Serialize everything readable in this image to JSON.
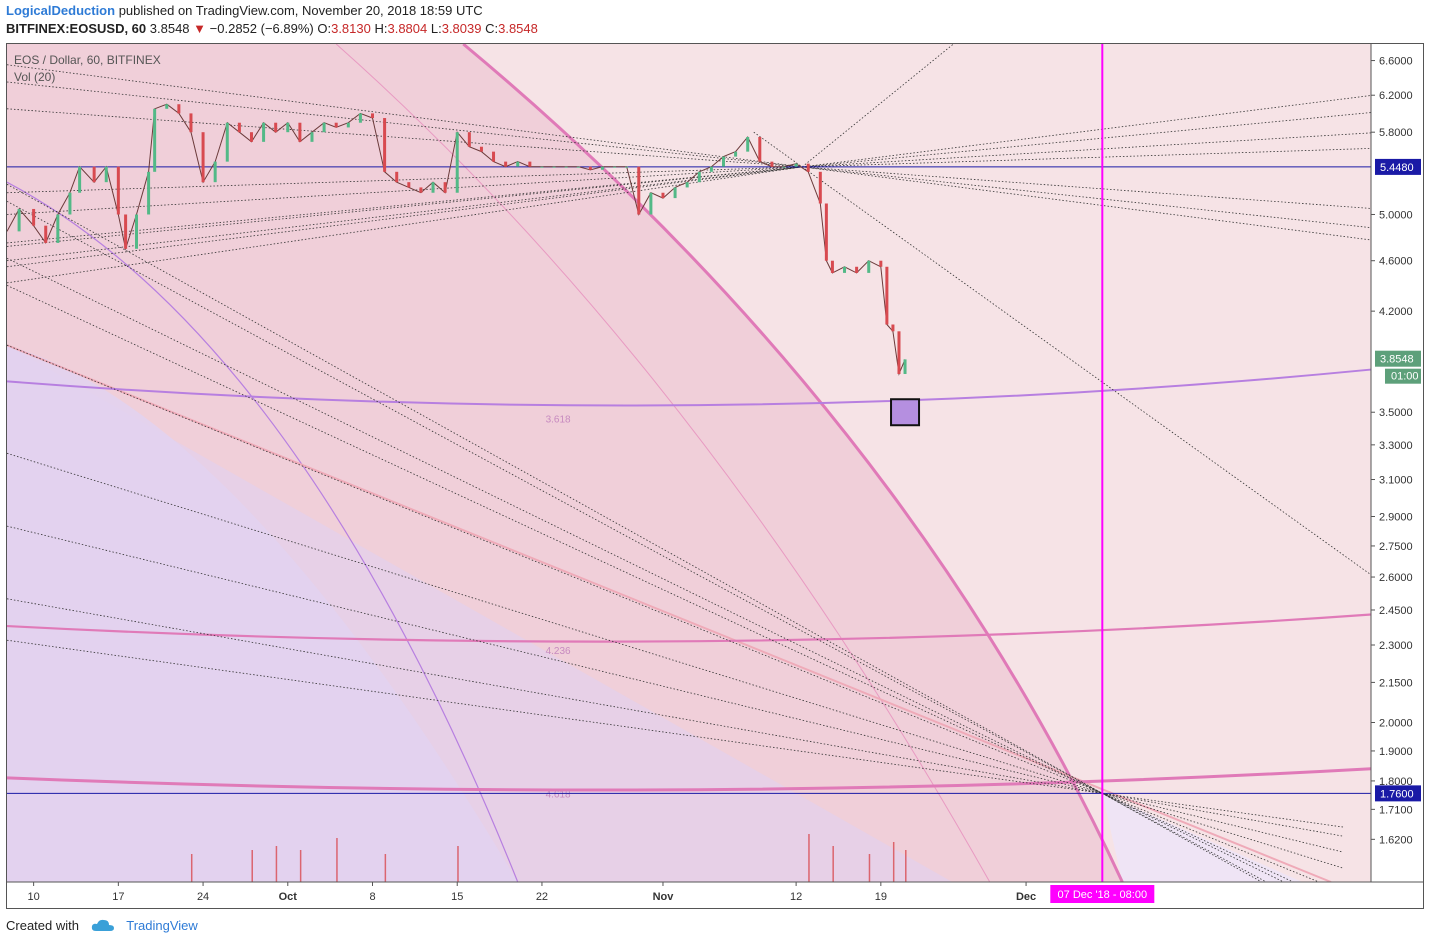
{
  "header": {
    "author": "LogicalDeduction",
    "published_text": "published on TradingView.com, November 20, 2018 18:59 UTC",
    "symbol": "BITFINEX:EOSUSD, 60",
    "last": "3.8548",
    "change": "−0.2852 (−6.89%)",
    "o_label": "O:",
    "o_value": "3.8130",
    "h_label": "H:",
    "h_value": "3.8804",
    "l_label": "L:",
    "l_value": "3.8039",
    "c_label": "C:",
    "c_value": "3.8548"
  },
  "legend": {
    "series": "EOS / Dollar, 60, BITFINEX",
    "volume": "Vol (20)"
  },
  "footer": {
    "created_with": "Created with",
    "brand": "TradingView"
  },
  "colors": {
    "candle_up": "#53b987",
    "candle_down": "#d84a50",
    "fib_pink": "#e07ab8",
    "fib_purple": "#b77fe0",
    "blue_line": "#1a1aa6",
    "magenta_line": "#ff00ff",
    "price_tag_green": "#5da07a"
  },
  "chart_data": {
    "type": "candlestick",
    "symbol": "EOSUSD",
    "exchange": "BITFINEX",
    "interval": "60",
    "y_scale": "log",
    "ylim": [
      1.5,
      6.8
    ],
    "y_ticks": [
      6.6,
      6.2,
      5.8,
      5.0,
      4.6,
      4.2,
      3.5,
      3.3,
      3.1,
      2.9,
      2.75,
      2.6,
      2.45,
      2.3,
      2.15,
      2.0,
      1.9,
      1.8,
      1.71,
      1.62
    ],
    "y_tick_labels": [
      "6.6000",
      "6.2000",
      "5.8000",
      "5.0000",
      "4.6000",
      "4.2000",
      "3.5000",
      "3.3000",
      "3.1000",
      "2.9000",
      "2.7500",
      "2.6000",
      "2.4500",
      "2.3000",
      "2.1500",
      "2.0000",
      "1.9000",
      "1.8000",
      "1.7100",
      "1.6200"
    ],
    "x_ticks": [
      "10",
      "17",
      "24",
      "Oct",
      "8",
      "15",
      "22",
      "Nov",
      "12",
      "19",
      "Dec"
    ],
    "x_tick_days": [
      0,
      7,
      14,
      21,
      28,
      35,
      42,
      52,
      63,
      70,
      82
    ],
    "x_origin": "2018-09-10",
    "x_range_days": [
      -2.2,
      110.5
    ],
    "price_series": [
      [
        -2.2,
        4.85
      ],
      [
        -1.2,
        5.05
      ],
      [
        0,
        4.9
      ],
      [
        1,
        4.75
      ],
      [
        2,
        5.0
      ],
      [
        3,
        5.2
      ],
      [
        3.8,
        5.45
      ],
      [
        5,
        5.3
      ],
      [
        6,
        5.45
      ],
      [
        7,
        5.0
      ],
      [
        7.6,
        4.7
      ],
      [
        8.5,
        5.0
      ],
      [
        9.5,
        5.4
      ],
      [
        10,
        6.05
      ],
      [
        11,
        6.1
      ],
      [
        12,
        6.0
      ],
      [
        13,
        5.8
      ],
      [
        14,
        5.3
      ],
      [
        15,
        5.5
      ],
      [
        16,
        5.9
      ],
      [
        17,
        5.8
      ],
      [
        18,
        5.7
      ],
      [
        19,
        5.9
      ],
      [
        20,
        5.8
      ],
      [
        21,
        5.9
      ],
      [
        22,
        5.7
      ],
      [
        23,
        5.8
      ],
      [
        24,
        5.9
      ],
      [
        25,
        5.85
      ],
      [
        26,
        5.9
      ],
      [
        27,
        6.0
      ],
      [
        28,
        5.95
      ],
      [
        29,
        5.4
      ],
      [
        30,
        5.3
      ],
      [
        31,
        5.25
      ],
      [
        32,
        5.2
      ],
      [
        33,
        5.3
      ],
      [
        34,
        5.2
      ],
      [
        35,
        5.8
      ],
      [
        36,
        5.65
      ],
      [
        37,
        5.6
      ],
      [
        38,
        5.5
      ],
      [
        39,
        5.45
      ],
      [
        40,
        5.5
      ],
      [
        41,
        5.45
      ],
      [
        42,
        5.45
      ],
      [
        43,
        5.45
      ],
      [
        44,
        5.45
      ],
      [
        45,
        5.45
      ],
      [
        46,
        5.42
      ],
      [
        47,
        5.45
      ],
      [
        48,
        5.45
      ],
      [
        49,
        5.45
      ],
      [
        50,
        5.0
      ],
      [
        51,
        5.2
      ],
      [
        52,
        5.15
      ],
      [
        53,
        5.25
      ],
      [
        54,
        5.3
      ],
      [
        55,
        5.4
      ],
      [
        56,
        5.45
      ],
      [
        57,
        5.55
      ],
      [
        58,
        5.6
      ],
      [
        59,
        5.75
      ],
      [
        60,
        5.5
      ],
      [
        61,
        5.45
      ],
      [
        62,
        5.45
      ],
      [
        63,
        5.48
      ],
      [
        64,
        5.4
      ],
      [
        65,
        5.1
      ],
      [
        65.5,
        4.6
      ],
      [
        66,
        4.5
      ],
      [
        67,
        4.55
      ],
      [
        68,
        4.5
      ],
      [
        69,
        4.6
      ],
      [
        70,
        4.55
      ],
      [
        70.5,
        4.1
      ],
      [
        71,
        4.05
      ],
      [
        71.5,
        3.75
      ],
      [
        72,
        3.85
      ]
    ],
    "current_price": 3.8548,
    "price_tags": [
      {
        "value": 5.448,
        "label": "5.4480"
      },
      {
        "value": 3.8548,
        "label": "3.8548"
      },
      {
        "value": 1.76,
        "label": "1.7600"
      }
    ],
    "countdown": "01:00",
    "horizontal_lines": [
      5.448,
      1.76
    ],
    "vertical_line": {
      "day": 88.3,
      "label": "07 Dec '18 - 08:00"
    },
    "fib_levels": [
      {
        "label": "3.618",
        "value": 3.46
      },
      {
        "label": "4.236",
        "value": 2.28
      },
      {
        "label": "4.618",
        "value": 1.76
      }
    ],
    "target_box": {
      "day": 72,
      "value": 3.5
    },
    "volume": [
      [
        13,
        0.35
      ],
      [
        18,
        0.4
      ],
      [
        20,
        0.45
      ],
      [
        22,
        0.4
      ],
      [
        25,
        0.55
      ],
      [
        29,
        0.35
      ],
      [
        35,
        0.45
      ],
      [
        64,
        0.6
      ],
      [
        66,
        0.45
      ],
      [
        69,
        0.35
      ],
      [
        71,
        0.5
      ],
      [
        72,
        0.4
      ]
    ]
  }
}
